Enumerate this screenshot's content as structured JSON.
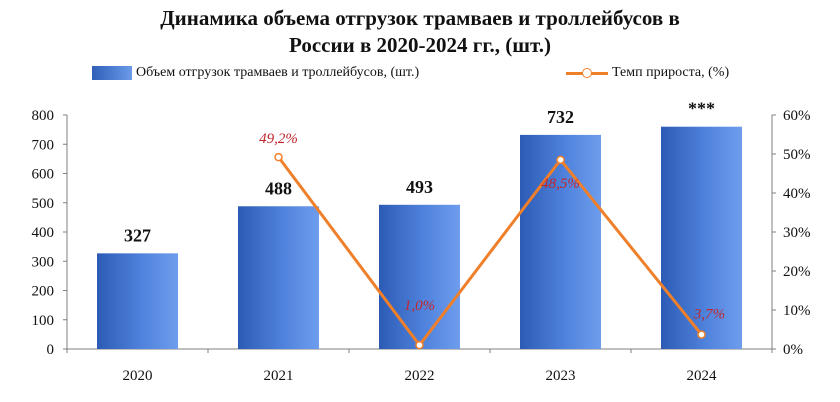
{
  "chart_data": {
    "type": "bar",
    "title_lines": [
      "Динамика объема отгрузок трамваев и троллейбусов в",
      "России в 2020-2024 гг., (шт.)"
    ],
    "categories": [
      "2020",
      "2021",
      "2022",
      "2023",
      "2024"
    ],
    "series": [
      {
        "name": "Объем отгрузок трамваев и троллейбусов, (шт.)",
        "type": "bar",
        "axis": "left",
        "values": [
          327,
          488,
          493,
          732,
          760
        ],
        "labels": [
          "327",
          "488",
          "493",
          "732",
          "***"
        ],
        "color": "#3d6fd0"
      },
      {
        "name": "Темп прироста, (%)",
        "type": "line",
        "axis": "right",
        "values": [
          null,
          49.2,
          1.0,
          48.5,
          3.7
        ],
        "labels": [
          "",
          "49,2%",
          "1,0%",
          "48,5%",
          "3,7%"
        ],
        "color": "#f07f2a",
        "label_color": "#c0272d"
      }
    ],
    "y_left": {
      "min": 0,
      "max": 800,
      "ticks": [
        "0",
        "100",
        "200",
        "300",
        "400",
        "500",
        "600",
        "700",
        "800"
      ]
    },
    "y_right": {
      "min": 0,
      "max": 60,
      "ticks": [
        "0%",
        "10%",
        "20%",
        "30%",
        "40%",
        "50%",
        "60%"
      ]
    },
    "grid": false,
    "legend_position": "top"
  }
}
